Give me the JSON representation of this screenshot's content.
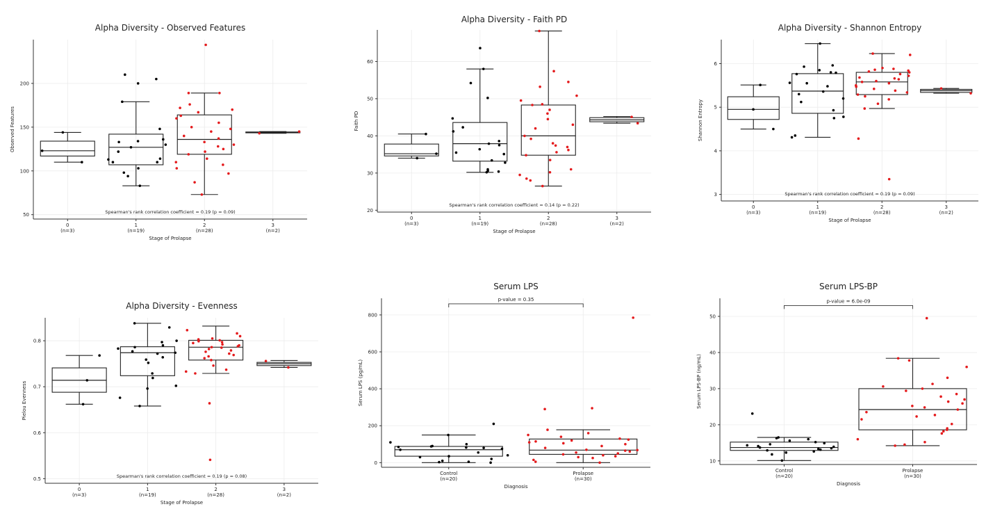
{
  "figure": {
    "title": ""
  },
  "chart_data": [
    {
      "type": "box",
      "title": "Alpha Diversity - Observed Features",
      "xlabel": "Stage of Prolapse",
      "ylabel": "Observed Features",
      "ylim": [
        45,
        250
      ],
      "yticks": [
        50,
        100,
        150,
        200
      ],
      "grid": true,
      "annotation": "Spearman's rank correlation coefficient = 0.19 (p = 0.09)",
      "groups": [
        {
          "label": "0",
          "n_label": "(n=3)",
          "q1": 117,
          "median": 123,
          "q3": 134,
          "whisker_low": 110,
          "whisker_high": 144,
          "color": "#000000",
          "points": [
            110,
            123,
            144
          ]
        },
        {
          "label": "1",
          "n_label": "(n=19)",
          "q1": 107,
          "median": 127,
          "q3": 142,
          "whisker_low": 83,
          "whisker_high": 179,
          "color": "#000000",
          "points": [
            83,
            94,
            98,
            103,
            110,
            113,
            114,
            122,
            127,
            130,
            133,
            134,
            136,
            148,
            179,
            200,
            205,
            210,
            110
          ]
        },
        {
          "label": "2",
          "n_label": "(n=28)",
          "q1": 119,
          "median": 136,
          "q3": 164,
          "whisker_low": 73,
          "whisker_high": 189,
          "color": "#e41a1c",
          "points": [
            73,
            87,
            97,
            103,
            107,
            110,
            114,
            119,
            122,
            125,
            128,
            130,
            133,
            137,
            140,
            145,
            148,
            150,
            155,
            160,
            163,
            167,
            170,
            172,
            176,
            189,
            189,
            244
          ]
        },
        {
          "label": "3",
          "n_label": "(n=2)",
          "q1": 143.5,
          "median": 144,
          "q3": 144.5,
          "whisker_low": 143,
          "whisker_high": 145,
          "color": "#e41a1c",
          "points": [
            143,
            145
          ]
        }
      ]
    },
    {
      "type": "box",
      "title": "Alpha Diversity - Faith PD",
      "xlabel": "Stage of Prolapse",
      "ylabel": "Faith PD",
      "ylim": [
        19.5,
        68.5
      ],
      "yticks": [
        20,
        30,
        40,
        50,
        60
      ],
      "grid": true,
      "annotation": "Spearman's rank correlation coefficient = 0.14 (p = 0.22)",
      "groups": [
        {
          "label": "0",
          "n_label": "(n=3)",
          "q1": 34.6,
          "median": 35.2,
          "q3": 37.8,
          "whisker_low": 34.0,
          "whisker_high": 40.5,
          "color": "#000000",
          "points": [
            34.0,
            35.2,
            40.5
          ]
        },
        {
          "label": "1",
          "n_label": "(n=19)",
          "q1": 33.2,
          "median": 37.9,
          "q3": 43.6,
          "whisker_low": 30.2,
          "whisker_high": 58.0,
          "color": "#000000",
          "points": [
            30.2,
            30.4,
            30.6,
            31.0,
            32.8,
            33.4,
            35.5,
            36.4,
            37.5,
            37.9,
            38.6,
            41.2,
            42.3,
            44.7,
            50.2,
            54.2,
            58.0,
            63.6,
            35.1
          ]
        },
        {
          "label": "2",
          "n_label": "(n=28)",
          "q1": 34.8,
          "median": 40.0,
          "q3": 48.3,
          "whisker_low": 26.5,
          "whisker_high": 68.2,
          "color": "#e41a1c",
          "points": [
            26.5,
            28.0,
            28.5,
            29.5,
            30.2,
            31.0,
            33.5,
            34.8,
            36.2,
            37.0,
            37.4,
            38.0,
            39.2,
            40.0,
            42.0,
            43.0,
            44.5,
            46.0,
            47.0,
            48.3,
            48.5,
            49.5,
            50.8,
            53.2,
            54.5,
            57.4,
            68.2,
            35.6
          ]
        },
        {
          "label": "3",
          "n_label": "(n=2)",
          "q1": 43.8,
          "median": 44.3,
          "q3": 44.9,
          "whisker_low": 43.4,
          "whisker_high": 45.2,
          "color": "#e41a1c",
          "points": [
            43.4,
            45.1
          ]
        }
      ]
    },
    {
      "type": "box",
      "title": "Alpha Diversity - Shannon Entropy",
      "xlabel": "Stage of Prolapse",
      "ylabel": "Shannon Entropy",
      "ylim": [
        2.85,
        6.55
      ],
      "yticks": [
        3,
        4,
        5,
        6
      ],
      "grid": true,
      "annotation": "Spearman's rank correlation coefficient = 0.19 (p = 0.09)",
      "groups": [
        {
          "label": "0",
          "n_label": "(n=3)",
          "q1": 4.72,
          "median": 4.95,
          "q3": 5.24,
          "whisker_low": 4.5,
          "whisker_high": 5.51,
          "color": "#000000",
          "points": [
            4.5,
            4.95,
            5.51
          ]
        },
        {
          "label": "1",
          "n_label": "(n=19)",
          "q1": 4.86,
          "median": 5.37,
          "q3": 5.77,
          "whisker_low": 4.31,
          "whisker_high": 6.46,
          "color": "#000000",
          "points": [
            4.31,
            4.35,
            4.75,
            4.78,
            4.93,
            5.12,
            5.3,
            5.36,
            5.48,
            5.55,
            5.56,
            5.76,
            5.79,
            5.8,
            5.85,
            5.93,
            5.96,
            6.46,
            5.2
          ]
        },
        {
          "label": "2",
          "n_label": "(n=28)",
          "q1": 5.29,
          "median": 5.58,
          "q3": 5.8,
          "whisker_low": 4.97,
          "whisker_high": 6.23,
          "color": "#e41a1c",
          "points": [
            3.35,
            4.28,
            4.97,
            5.08,
            5.18,
            5.25,
            5.29,
            5.34,
            5.38,
            5.42,
            5.47,
            5.5,
            5.55,
            5.58,
            5.6,
            5.64,
            5.68,
            5.72,
            5.76,
            5.8,
            5.82,
            5.84,
            5.86,
            5.88,
            5.9,
            6.2,
            6.23,
            5.66
          ]
        },
        {
          "label": "3",
          "n_label": "(n=2)",
          "q1": 5.34,
          "median": 5.38,
          "q3": 5.41,
          "whisker_low": 5.32,
          "whisker_high": 5.43,
          "color": "#e41a1c",
          "points": [
            5.32,
            5.43
          ]
        }
      ]
    },
    {
      "type": "box",
      "title": "Alpha Diversity - Evenness",
      "xlabel": "Stage of Prolapse",
      "ylabel": "Pielou Evenness",
      "ylim": [
        0.49,
        0.85
      ],
      "yticks": [
        0.5,
        0.6,
        0.7,
        0.8
      ],
      "grid": true,
      "annotation": "Spearman's rank correlation coefficient = 0.19 (p = 0.08)",
      "groups": [
        {
          "label": "0",
          "n_label": "(n=3)",
          "q1": 0.688,
          "median": 0.714,
          "q3": 0.741,
          "whisker_low": 0.662,
          "whisker_high": 0.768,
          "color": "#000000",
          "points": [
            0.662,
            0.714,
            0.768
          ]
        },
        {
          "label": "1",
          "n_label": "(n=19)",
          "q1": 0.724,
          "median": 0.774,
          "q3": 0.787,
          "whisker_low": 0.658,
          "whisker_high": 0.838,
          "color": "#000000",
          "points": [
            0.658,
            0.676,
            0.696,
            0.702,
            0.719,
            0.729,
            0.752,
            0.759,
            0.764,
            0.772,
            0.774,
            0.777,
            0.783,
            0.786,
            0.79,
            0.797,
            0.8,
            0.829,
            0.838
          ]
        },
        {
          "label": "2",
          "n_label": "(n=28)",
          "q1": 0.758,
          "median": 0.786,
          "q3": 0.801,
          "whisker_low": 0.729,
          "whisker_high": 0.832,
          "color": "#e41a1c",
          "points": [
            0.541,
            0.664,
            0.729,
            0.733,
            0.737,
            0.746,
            0.758,
            0.762,
            0.766,
            0.769,
            0.772,
            0.776,
            0.779,
            0.782,
            0.785,
            0.786,
            0.788,
            0.79,
            0.792,
            0.795,
            0.797,
            0.799,
            0.801,
            0.803,
            0.805,
            0.81,
            0.816,
            0.823
          ]
        },
        {
          "label": "3",
          "n_label": "(n=2)",
          "q1": 0.746,
          "median": 0.75,
          "q3": 0.753,
          "whisker_low": 0.742,
          "whisker_high": 0.757,
          "color": "#e41a1c",
          "points": [
            0.742,
            0.756
          ]
        }
      ]
    },
    {
      "type": "box",
      "title": "Serum LPS",
      "xlabel": "Diagnosis",
      "ylabel": "Serum LPS (pg/mL)",
      "ylim": [
        -25,
        890
      ],
      "yticks": [
        0,
        200,
        400,
        600,
        800
      ],
      "grid": true,
      "bracket_label": "p-value = 0.35",
      "bracket_y": 860,
      "groups": [
        {
          "label": "Control",
          "n_label": "(n=20)",
          "q1": 35,
          "median": 70,
          "q3": 88,
          "whisker_low": 0,
          "whisker_high": 150,
          "color": "#000000",
          "points": [
            0,
            3,
            5,
            10,
            20,
            30,
            35,
            40,
            55,
            70,
            75,
            80,
            82,
            85,
            88,
            90,
            100,
            110,
            150,
            210
          ]
        },
        {
          "label": "Prolapse",
          "n_label": "(n=30)",
          "q1": 45,
          "median": 68,
          "q3": 128,
          "whisker_low": 0,
          "whisker_high": 178,
          "color": "#e41a1c",
          "points": [
            0,
            5,
            15,
            25,
            30,
            35,
            40,
            45,
            50,
            55,
            60,
            65,
            68,
            70,
            80,
            90,
            100,
            105,
            110,
            115,
            120,
            125,
            130,
            140,
            150,
            160,
            178,
            290,
            295,
            785
          ]
        }
      ]
    },
    {
      "type": "box",
      "title": "Serum LPS-BP",
      "xlabel": "Diagnosis",
      "ylabel": "Serum LPS-BP (ng/mL)",
      "ylim": [
        9,
        55
      ],
      "yticks": [
        10,
        20,
        30,
        40,
        50
      ],
      "grid": true,
      "bracket_label": "p-value = 6.0e-09",
      "bracket_y": 53,
      "groups": [
        {
          "label": "Control",
          "n_label": "(n=20)",
          "q1": 12.9,
          "median": 13.7,
          "q3": 15.2,
          "whisker_low": 10.1,
          "whisker_high": 16.5,
          "color": "#000000",
          "points": [
            10.1,
            11.8,
            12.3,
            12.6,
            12.9,
            13.1,
            13.3,
            13.5,
            13.7,
            13.9,
            14.1,
            14.3,
            14.6,
            14.9,
            15.2,
            15.6,
            16.0,
            16.3,
            16.5,
            23.1
          ]
        },
        {
          "label": "Prolapse",
          "n_label": "(n=30)",
          "q1": 18.6,
          "median": 24.2,
          "q3": 30.0,
          "whisker_low": 14.2,
          "whisker_high": 38.4,
          "color": "#e41a1c",
          "points": [
            14.2,
            14.5,
            15.2,
            16.0,
            17.6,
            18.2,
            18.6,
            19.0,
            20.2,
            21.5,
            22.3,
            22.7,
            23.5,
            24.2,
            24.8,
            25.2,
            25.9,
            26.4,
            27.0,
            27.8,
            28.5,
            29.4,
            30.0,
            30.6,
            31.3,
            33.0,
            36.0,
            37.8,
            38.4,
            49.5
          ]
        }
      ]
    }
  ]
}
